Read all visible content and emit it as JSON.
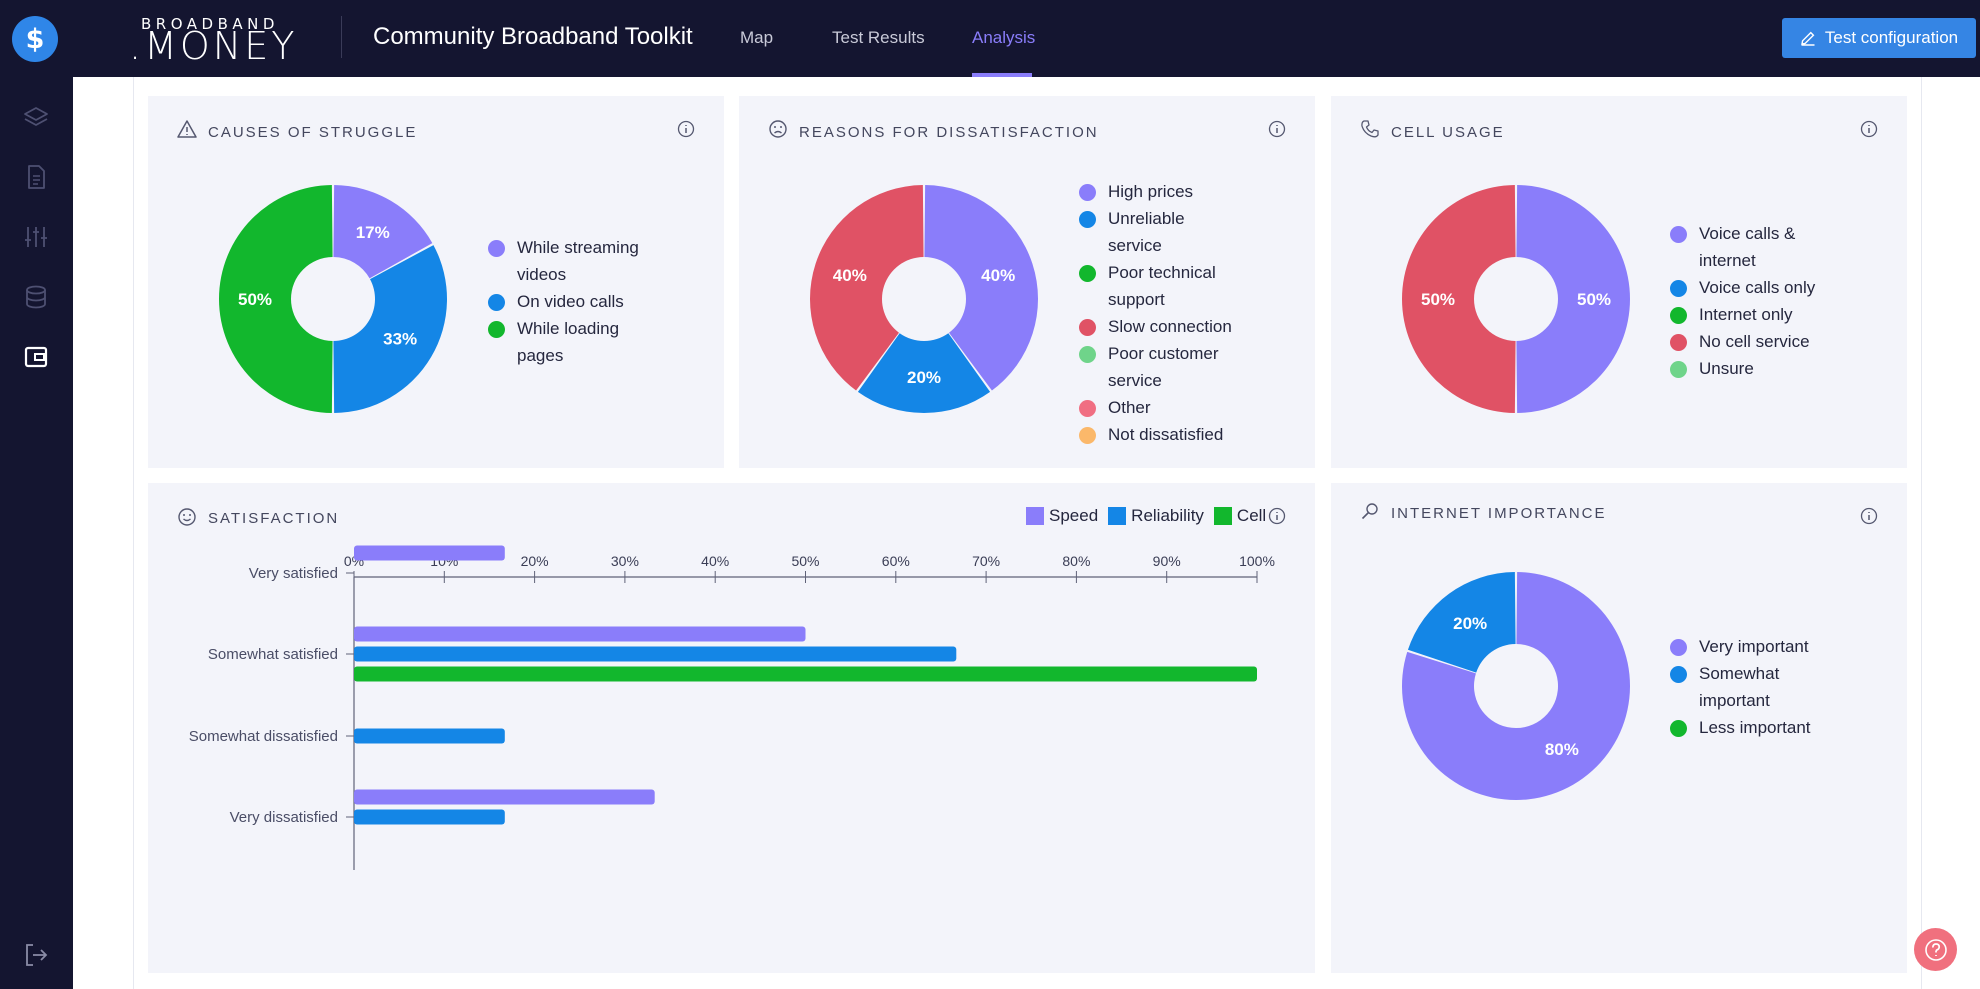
{
  "brand": {
    "top": "BROADBAND",
    "bottom": ".MONEY"
  },
  "app_title": "Community Broadband Toolkit",
  "nav": {
    "tabs": [
      {
        "label": "Map"
      },
      {
        "label": "Test Results"
      },
      {
        "label": "Analysis",
        "active": true
      }
    ]
  },
  "test_button": {
    "label": "Test configuration",
    "icon": "pencil-icon"
  },
  "sidebar_icons": [
    "layers-icon",
    "document-icon",
    "sliders-icon",
    "database-icon",
    "wallet-icon",
    "logout-icon"
  ],
  "colors": {
    "navy": "#141530",
    "accent": "#8a7dfa",
    "button_blue": "#3585e4",
    "purple": "#8a7dfa",
    "blue": "#1486e6",
    "green": "#12b72d",
    "red": "#e05265",
    "light_green": "#6fd48a",
    "pink": "#f06e82",
    "orange": "#fbb86a"
  },
  "cards": {
    "struggle": {
      "title": "Causes of struggle",
      "icon": "warning-icon",
      "legend": [
        {
          "label": "While streaming videos",
          "color": "#8a7dfa"
        },
        {
          "label": "On video calls",
          "color": "#1486e6"
        },
        {
          "label": "While loading pages",
          "color": "#12b72d"
        }
      ]
    },
    "dissatisfaction": {
      "title": "Reasons for dissatisfaction",
      "icon": "frown-icon",
      "legend": [
        {
          "label": "High prices",
          "color": "#8a7dfa"
        },
        {
          "label": "Unreliable service",
          "color": "#1486e6"
        },
        {
          "label": "Poor technical support",
          "color": "#12b72d"
        },
        {
          "label": "Slow connection",
          "color": "#e05265"
        },
        {
          "label": "Poor customer service",
          "color": "#6fd48a"
        },
        {
          "label": "Other",
          "color": "#f06e82"
        },
        {
          "label": "Not dissatisfied",
          "color": "#fbb86a"
        }
      ]
    },
    "cell": {
      "title": "Cell usage",
      "icon": "phone-icon",
      "legend": [
        {
          "label": "Voice calls & internet",
          "color": "#8a7dfa"
        },
        {
          "label": "Voice calls only",
          "color": "#1486e6"
        },
        {
          "label": "Internet only",
          "color": "#12b72d"
        },
        {
          "label": "No cell service",
          "color": "#e05265"
        },
        {
          "label": "Unsure",
          "color": "#6fd48a"
        }
      ]
    },
    "satisfaction": {
      "title": "Satisfaction",
      "icon": "smile-icon",
      "legend": [
        {
          "label": "Speed",
          "color": "#8a7dfa"
        },
        {
          "label": "Reliability",
          "color": "#1486e6"
        },
        {
          "label": "Cell",
          "color": "#12b72d"
        }
      ]
    },
    "importance": {
      "title": "Internet importance",
      "icon": "magnifier-icon",
      "legend": [
        {
          "label": "Very important",
          "color": "#8a7dfa"
        },
        {
          "label": "Somewhat important",
          "color": "#1486e6"
        },
        {
          "label": "Less important",
          "color": "#12b72d"
        }
      ]
    }
  },
  "chart_data": [
    {
      "type": "pie",
      "title": "Causes of struggle",
      "labels": [
        "While streaming videos",
        "On video calls",
        "While loading pages"
      ],
      "values": [
        17,
        33,
        50
      ],
      "colors": [
        "#8a7dfa",
        "#1486e6",
        "#12b72d"
      ],
      "value_labels": [
        "17%",
        "33%",
        "50%"
      ],
      "legend_position": "right"
    },
    {
      "type": "pie",
      "title": "Reasons for dissatisfaction",
      "labels": [
        "High prices",
        "Unreliable service",
        "Poor technical support",
        "Slow connection",
        "Poor customer service",
        "Other",
        "Not dissatisfied"
      ],
      "values": [
        40,
        20,
        0,
        40,
        0,
        0,
        0
      ],
      "colors": [
        "#8a7dfa",
        "#1486e6",
        "#12b72d",
        "#e05265",
        "#6fd48a",
        "#f06e82",
        "#fbb86a"
      ],
      "value_labels": [
        "40%",
        "20%",
        "",
        "40%",
        "",
        "",
        ""
      ],
      "legend_position": "right"
    },
    {
      "type": "pie",
      "title": "Cell usage",
      "labels": [
        "Voice calls & internet",
        "Voice calls only",
        "Internet only",
        "No cell service",
        "Unsure"
      ],
      "values": [
        50,
        0,
        0,
        50,
        0
      ],
      "colors": [
        "#8a7dfa",
        "#1486e6",
        "#12b72d",
        "#e05265",
        "#6fd48a"
      ],
      "value_labels": [
        "50%",
        "",
        "",
        "50%",
        ""
      ],
      "legend_position": "right"
    },
    {
      "type": "bar",
      "orientation": "horizontal",
      "title": "Satisfaction",
      "categories": [
        "Very satisfied",
        "Somewhat satisfied",
        "Somewhat dissatisfied",
        "Very dissatisfied"
      ],
      "series": [
        {
          "name": "Speed",
          "color": "#8a7dfa",
          "values": [
            16.7,
            50,
            0,
            33.3
          ]
        },
        {
          "name": "Reliability",
          "color": "#1486e6",
          "values": [
            0,
            66.7,
            16.7,
            16.7
          ]
        },
        {
          "name": "Cell",
          "color": "#12b72d",
          "values": [
            0,
            100,
            0,
            0
          ]
        }
      ],
      "xlim": [
        0,
        100
      ],
      "xticks": [
        "0%",
        "10%",
        "20%",
        "30%",
        "40%",
        "50%",
        "60%",
        "70%",
        "80%",
        "90%",
        "100%"
      ],
      "x_axis_position": "top",
      "legend_position": "top-right",
      "grid": false
    },
    {
      "type": "pie",
      "title": "Internet importance",
      "labels": [
        "Very important",
        "Somewhat important",
        "Less important"
      ],
      "values": [
        80,
        20,
        0
      ],
      "colors": [
        "#8a7dfa",
        "#1486e6",
        "#12b72d"
      ],
      "value_labels": [
        "80%",
        "20%",
        ""
      ],
      "legend_position": "right"
    }
  ]
}
